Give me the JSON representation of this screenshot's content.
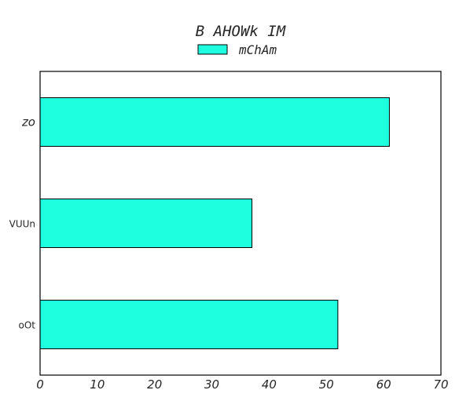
{
  "chart_data": {
    "type": "bar",
    "orientation": "horizontal",
    "title": "B AHOWk IM",
    "categories": [
      "oOt",
      "VUUn",
      "zo"
    ],
    "series": [
      {
        "name": "mChAm",
        "values": [
          52,
          37,
          61
        ],
        "color": "#1effdf"
      }
    ],
    "xlim": [
      0,
      70
    ],
    "xticks": [
      "0",
      "10",
      "20",
      "30",
      "40",
      "50",
      "60",
      "70"
    ],
    "xlabel": "",
    "ylabel": "",
    "grid": false,
    "legend_position": "top-center",
    "bar_edge_color": "#000000"
  }
}
